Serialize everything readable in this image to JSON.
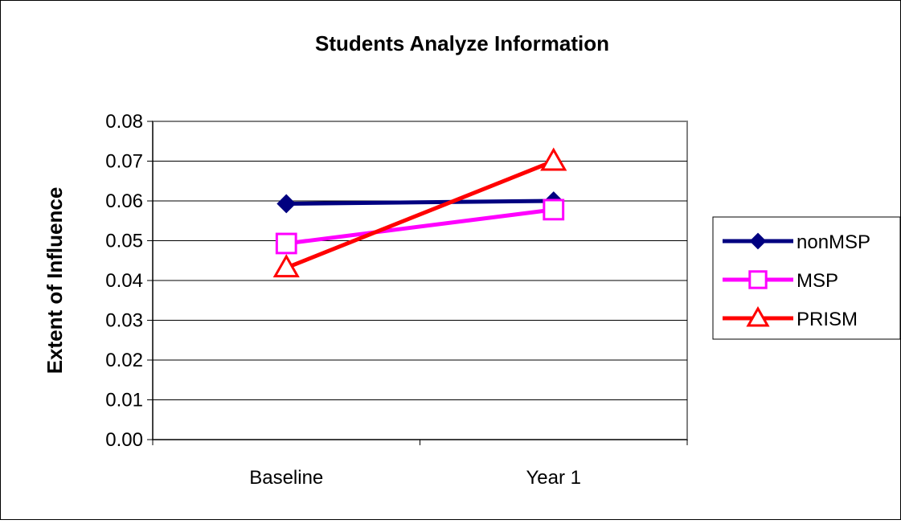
{
  "chart_data": {
    "type": "line",
    "title": "Students Analyze Information",
    "xlabel": "",
    "ylabel": "Extent of Influence",
    "categories": [
      "Baseline",
      "Year 1"
    ],
    "ylim": [
      0,
      0.08
    ],
    "yticks": [
      0.0,
      0.01,
      0.02,
      0.03,
      0.04,
      0.05,
      0.06,
      0.07,
      0.08
    ],
    "ytick_labels": [
      "0.00",
      "0.01",
      "0.02",
      "0.03",
      "0.04",
      "0.05",
      "0.06",
      "0.07",
      "0.08"
    ],
    "grid": true,
    "legend_position": "right",
    "series": [
      {
        "name": "nonMSP",
        "values": [
          0.0593,
          0.06
        ],
        "color": "#000080",
        "marker": "diamond",
        "marker_fill": "#000080"
      },
      {
        "name": "MSP",
        "values": [
          0.0493,
          0.0578
        ],
        "color": "#ff00ff",
        "marker": "square",
        "marker_fill": "#ffffff"
      },
      {
        "name": "PRISM",
        "values": [
          0.0432,
          0.07
        ],
        "color": "#ff0000",
        "marker": "triangle",
        "marker_fill": "#ffffff"
      }
    ]
  }
}
